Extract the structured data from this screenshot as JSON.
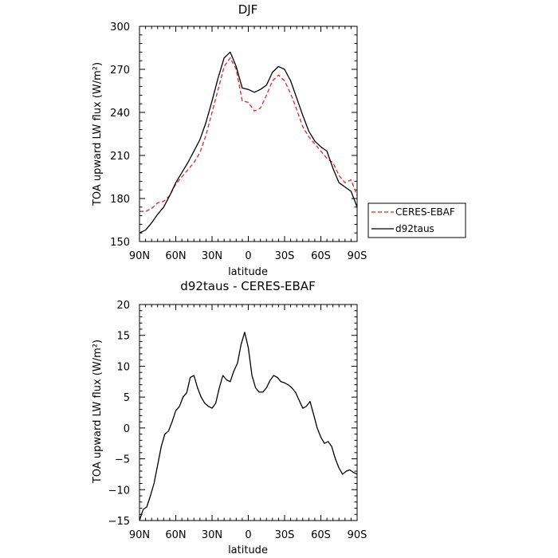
{
  "chart_data": [
    {
      "type": "line",
      "title": "DJF",
      "xlabel": "latitude",
      "ylabel": "TOA upward LW flux (W/m²)",
      "xlim": [
        90,
        -90
      ],
      "ylim": [
        150,
        300
      ],
      "xtick_values": [
        90,
        60,
        30,
        0,
        -30,
        -60,
        -90
      ],
      "xtick_labels": [
        "90N",
        "60N",
        "30N",
        "0",
        "30S",
        "60S",
        "90S"
      ],
      "ytick_values": [
        150,
        180,
        210,
        240,
        270,
        300
      ],
      "ytick_labels": [
        "150",
        "180",
        "210",
        "240",
        "270",
        "300"
      ],
      "legend_position": "right",
      "grid": false,
      "x": [
        90,
        85,
        80,
        75,
        70,
        65,
        60,
        55,
        50,
        45,
        40,
        35,
        30,
        25,
        20,
        15,
        10,
        5,
        0,
        -5,
        -10,
        -15,
        -20,
        -25,
        -30,
        -35,
        -40,
        -45,
        -50,
        -55,
        -60,
        -65,
        -70,
        -75,
        -80,
        -85,
        -90
      ],
      "series": [
        {
          "name": "CERES-EBAF",
          "color": "#e8231d",
          "dash": "dashed",
          "values": [
            171,
            171,
            173,
            177,
            178,
            182,
            190,
            195,
            200,
            205,
            212,
            224,
            240,
            256,
            272,
            278,
            270,
            248,
            247,
            241,
            243,
            252,
            262,
            266,
            262,
            253,
            242,
            230,
            223,
            218,
            213,
            208,
            205,
            196,
            191,
            193,
            182
          ]
        },
        {
          "name": "d92taus",
          "color": "#000000",
          "dash": "solid",
          "values": [
            156,
            158,
            163,
            169,
            174,
            182,
            191,
            198,
            205,
            213,
            221,
            233,
            248,
            264,
            278,
            282,
            272,
            257,
            256,
            254,
            256,
            259,
            268,
            272,
            270,
            262,
            250,
            238,
            227,
            220,
            216,
            213,
            201,
            191,
            188,
            185,
            174
          ]
        }
      ]
    },
    {
      "type": "line",
      "title": "d92taus - CERES-EBAF",
      "xlabel": "latitude",
      "ylabel": "TOA upward LW flux (W/m²)",
      "xlim": [
        90,
        -90
      ],
      "ylim": [
        -15,
        20
      ],
      "xtick_values": [
        90,
        60,
        30,
        0,
        -30,
        -60,
        -90
      ],
      "xtick_labels": [
        "90N",
        "60N",
        "30N",
        "0",
        "30S",
        "60S",
        "90S"
      ],
      "ytick_values": [
        -15,
        -10,
        -5,
        0,
        5,
        10,
        15,
        20
      ],
      "ytick_labels": [
        "−15",
        "−10",
        "−5",
        "0",
        "5",
        "10",
        "15",
        "20"
      ],
      "grid": false,
      "x": [
        90,
        87,
        84,
        81,
        78,
        75,
        72,
        69,
        66,
        63,
        60,
        57,
        54,
        51,
        48,
        45,
        42,
        39,
        36,
        33,
        30,
        27,
        24,
        21,
        18,
        15,
        12,
        9,
        6,
        3,
        0,
        -3,
        -6,
        -9,
        -12,
        -15,
        -18,
        -21,
        -24,
        -27,
        -30,
        -33,
        -36,
        -39,
        -42,
        -45,
        -48,
        -51,
        -54,
        -57,
        -60,
        -63,
        -66,
        -69,
        -72,
        -75,
        -78,
        -81,
        -84,
        -87,
        -90
      ],
      "series": [
        {
          "name": "d92taus - CERES-EBAF",
          "color": "#000000",
          "dash": "solid",
          "values": [
            -15,
            -13.2,
            -12.8,
            -11,
            -9,
            -6,
            -3,
            -1,
            -0.5,
            1,
            2.8,
            3.5,
            5,
            5.7,
            8.2,
            8.5,
            6.5,
            5,
            4,
            3.5,
            3.2,
            4,
            6.5,
            8.5,
            7.8,
            7.5,
            9.2,
            10.5,
            13.5,
            15.5,
            13,
            8.5,
            6.5,
            5.8,
            5.8,
            6.5,
            7.7,
            8.5,
            8.2,
            7.5,
            7.3,
            7,
            6.5,
            5.8,
            4.5,
            3.2,
            3.5,
            4.3,
            2.2,
            0,
            -1.5,
            -2.5,
            -2.2,
            -3,
            -5,
            -6.5,
            -7.5,
            -7,
            -6.8,
            -7.2,
            -7.5
          ]
        }
      ]
    }
  ]
}
